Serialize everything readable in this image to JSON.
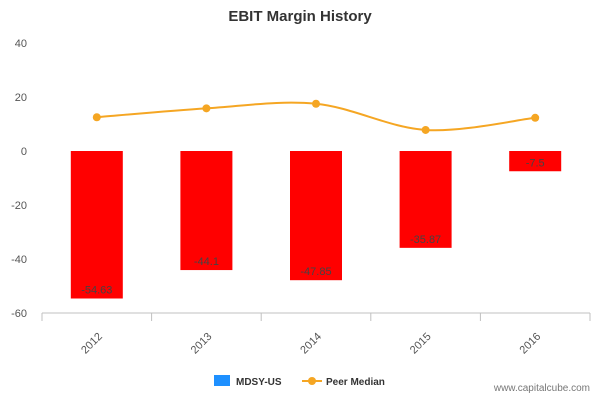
{
  "chart_data": {
    "type": "bar",
    "title": "EBIT Margin History",
    "categories": [
      "2012",
      "2013",
      "2014",
      "2015",
      "2016"
    ],
    "ylim": [
      -60,
      40
    ],
    "yticks": [
      -60,
      -40,
      -20,
      0,
      20,
      40
    ],
    "grid": false,
    "legend_position": "bottom",
    "series": [
      {
        "name": "MDSY-US",
        "kind": "bar",
        "legend_color": "#1e90ff",
        "bar_color": "#ff0000",
        "values": [
          -54.63,
          -44.1,
          -47.85,
          -35.87,
          -7.5
        ],
        "labels": [
          "-54.63",
          "-44.1",
          "-47.85",
          "-35.87",
          "-7.5"
        ]
      },
      {
        "name": "Peer Median",
        "kind": "line",
        "color": "#f5a623",
        "values": [
          12.5,
          15.8,
          17.5,
          7.8,
          12.3
        ]
      }
    ]
  },
  "footer": "www.capitalcube.com"
}
